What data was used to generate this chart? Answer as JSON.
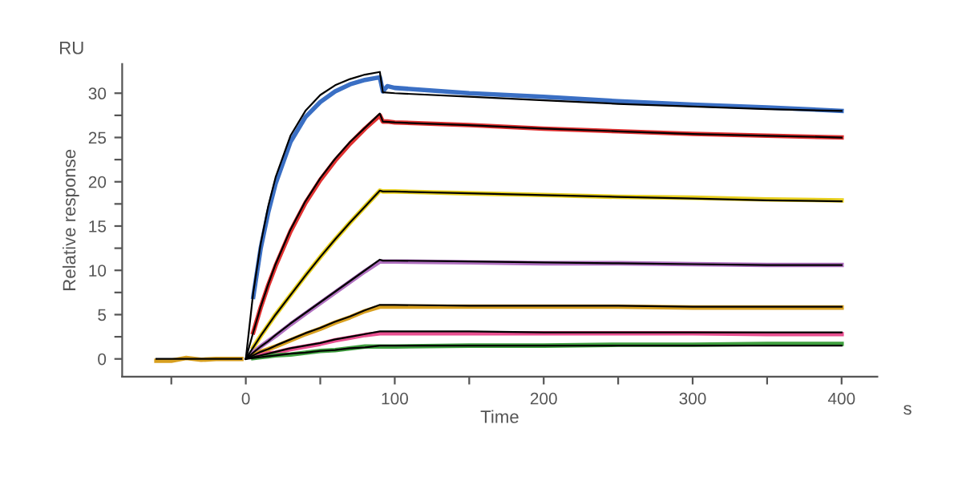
{
  "chart_data": {
    "type": "line",
    "xlabel": "Time",
    "ylabel": "Relative response",
    "annotations": [
      "RU",
      "s"
    ],
    "x": [
      5,
      10,
      15,
      20,
      30,
      40,
      50,
      60,
      70,
      80,
      90,
      92,
      95,
      100,
      150,
      200,
      250,
      300,
      350,
      400
    ],
    "xlim": [
      -83,
      424
    ],
    "ylim": [
      -2,
      33.3
    ],
    "xticks": [
      {
        "value": -50,
        "label": null
      },
      0,
      {
        "value": 50,
        "label": null
      },
      100,
      {
        "value": 150,
        "label": null
      },
      200,
      {
        "value": 250,
        "label": null
      },
      300,
      {
        "value": 350,
        "label": null
      },
      400
    ],
    "yticks": [
      0,
      {
        "value": 2.5,
        "label": null
      },
      5,
      {
        "value": 7.5,
        "label": null
      },
      10,
      {
        "value": 12.5,
        "label": null
      },
      15,
      {
        "value": 17.5,
        "label": null
      },
      20,
      {
        "value": 22.5,
        "label": null
      },
      25,
      {
        "value": 27.5,
        "label": null
      },
      30
    ],
    "grid": false,
    "marker": "none",
    "line_style": "solid",
    "series": [
      {
        "color": "#d8a020",
        "x": [
          -60,
          -50,
          -40,
          -30,
          -20,
          -10,
          -3
        ],
        "values": [
          -0.2,
          -0.2,
          0.1,
          -0.1,
          0,
          0,
          0
        ]
      },
      {
        "color": "#3a6fc4",
        "values": [
          7,
          12.5,
          16.5,
          19.8,
          24.5,
          27.3,
          29,
          30.2,
          31,
          31.5,
          31.8,
          30.2,
          30.8,
          30.6,
          30.0,
          29.6,
          29.1,
          28.7,
          28.4,
          28.0
        ]
      },
      {
        "color": "#e03030",
        "values": [
          3,
          5.8,
          8.3,
          10.5,
          14.4,
          17.6,
          20.2,
          22.4,
          24.3,
          26,
          27.5,
          26.8,
          26.8,
          26.7,
          26.4,
          26.0,
          25.7,
          25.4,
          25.2,
          25.0
        ]
      },
      {
        "color": "#e8d020",
        "values": [
          1.3,
          2.6,
          3.8,
          5.0,
          7.2,
          9.4,
          11.5,
          13.5,
          15.4,
          17.2,
          19.0,
          18.9,
          18.9,
          18.9,
          18.7,
          18.5,
          18.3,
          18.2,
          18.0,
          17.9
        ]
      },
      {
        "color": "#b070c0",
        "values": [
          0.7,
          1.4,
          2.0,
          2.6,
          3.9,
          5.1,
          6.3,
          7.5,
          8.7,
          9.9,
          11.0,
          11.0,
          11.0,
          11.0,
          10.9,
          10.8,
          10.8,
          10.7,
          10.6,
          10.6
        ]
      },
      {
        "color": "#d8a020",
        "values": [
          0.4,
          0.8,
          1.1,
          1.4,
          2.1,
          2.8,
          3.4,
          4.1,
          4.7,
          5.4,
          5.9,
          5.9,
          5.9,
          5.9,
          5.9,
          5.9,
          5.9,
          5.8,
          5.8,
          5.8
        ]
      },
      {
        "color": "#e85090",
        "values": [
          0.2,
          0.4,
          0.6,
          0.7,
          1.1,
          1.4,
          1.7,
          2.1,
          2.4,
          2.7,
          2.9,
          2.9,
          2.9,
          2.9,
          2.9,
          2.9,
          2.9,
          2.9,
          2.8,
          2.8
        ]
      },
      {
        "color": "#40a040",
        "values": [
          0.1,
          0.2,
          0.3,
          0.4,
          0.5,
          0.7,
          0.9,
          1.0,
          1.2,
          1.4,
          1.4,
          1.4,
          1.4,
          1.4,
          1.5,
          1.5,
          1.6,
          1.6,
          1.7,
          1.7
        ]
      },
      {
        "color": "#000000",
        "x": [
          -60,
          -3
        ],
        "values": [
          0,
          0
        ]
      },
      {
        "color": "#000000",
        "x": [
          0,
          5,
          10,
          15,
          20,
          30,
          40,
          50,
          60,
          70,
          80,
          90,
          92,
          100,
          150,
          200,
          250,
          300,
          350,
          400
        ],
        "values": [
          0,
          7.5,
          13,
          17.2,
          20.5,
          25.2,
          28,
          29.8,
          30.9,
          31.6,
          32.1,
          32.4,
          30.1,
          30.0,
          29.6,
          29.2,
          28.8,
          28.5,
          28.2,
          28.0
        ]
      },
      {
        "color": "#000000",
        "x": [
          0,
          5,
          10,
          15,
          20,
          30,
          40,
          50,
          60,
          70,
          80,
          90,
          92,
          100,
          150,
          200,
          250,
          300,
          350,
          400
        ],
        "values": [
          0,
          3,
          5.9,
          8.4,
          10.7,
          14.6,
          17.8,
          20.4,
          22.6,
          24.5,
          26.1,
          27.7,
          26.8,
          26.7,
          26.4,
          26.0,
          25.7,
          25.4,
          25.2,
          25.0
        ]
      },
      {
        "color": "#000000",
        "x": [
          0,
          5,
          10,
          15,
          20,
          30,
          40,
          50,
          60,
          70,
          80,
          90,
          92,
          100,
          150,
          200,
          250,
          300,
          350,
          400
        ],
        "values": [
          0,
          1.3,
          2.6,
          3.8,
          5.0,
          7.2,
          9.4,
          11.5,
          13.5,
          15.4,
          17.2,
          19.0,
          18.9,
          18.9,
          18.7,
          18.5,
          18.3,
          18.1,
          17.9,
          17.8
        ]
      },
      {
        "color": "#000000",
        "x": [
          0,
          5,
          10,
          15,
          20,
          30,
          40,
          50,
          60,
          70,
          80,
          90,
          92,
          100,
          150,
          200,
          250,
          300,
          350,
          400
        ],
        "values": [
          0,
          0.7,
          1.4,
          2.0,
          2.7,
          4.0,
          5.2,
          6.4,
          7.6,
          8.8,
          10.0,
          11.2,
          11.1,
          11.1,
          11.0,
          10.9,
          10.8,
          10.7,
          10.6,
          10.6
        ]
      },
      {
        "color": "#000000",
        "x": [
          0,
          5,
          10,
          15,
          20,
          30,
          40,
          50,
          60,
          70,
          80,
          90,
          92,
          100,
          150,
          200,
          250,
          300,
          350,
          400
        ],
        "values": [
          0,
          0.4,
          0.8,
          1.1,
          1.5,
          2.2,
          2.9,
          3.5,
          4.2,
          4.8,
          5.5,
          6.1,
          6.1,
          6.1,
          6.0,
          6.0,
          6.0,
          5.9,
          5.9,
          5.9
        ]
      },
      {
        "color": "#000000",
        "x": [
          0,
          5,
          10,
          15,
          20,
          30,
          40,
          50,
          60,
          70,
          80,
          90,
          92,
          100,
          150,
          200,
          250,
          300,
          350,
          400
        ],
        "values": [
          0,
          0.2,
          0.4,
          0.6,
          0.8,
          1.2,
          1.5,
          1.8,
          2.2,
          2.5,
          2.8,
          3.1,
          3.1,
          3.1,
          3.1,
          3.0,
          3.0,
          3.0,
          3.0,
          3.0
        ]
      },
      {
        "color": "#000000",
        "x": [
          0,
          5,
          10,
          15,
          20,
          30,
          40,
          50,
          60,
          70,
          80,
          90,
          92,
          100,
          150,
          200,
          250,
          300,
          350,
          400
        ],
        "values": [
          0,
          0.1,
          0.2,
          0.3,
          0.4,
          0.6,
          0.7,
          0.9,
          1.0,
          1.2,
          1.3,
          1.5,
          1.5,
          1.5,
          1.5,
          1.5,
          1.5,
          1.5,
          1.5,
          1.5
        ]
      }
    ]
  }
}
